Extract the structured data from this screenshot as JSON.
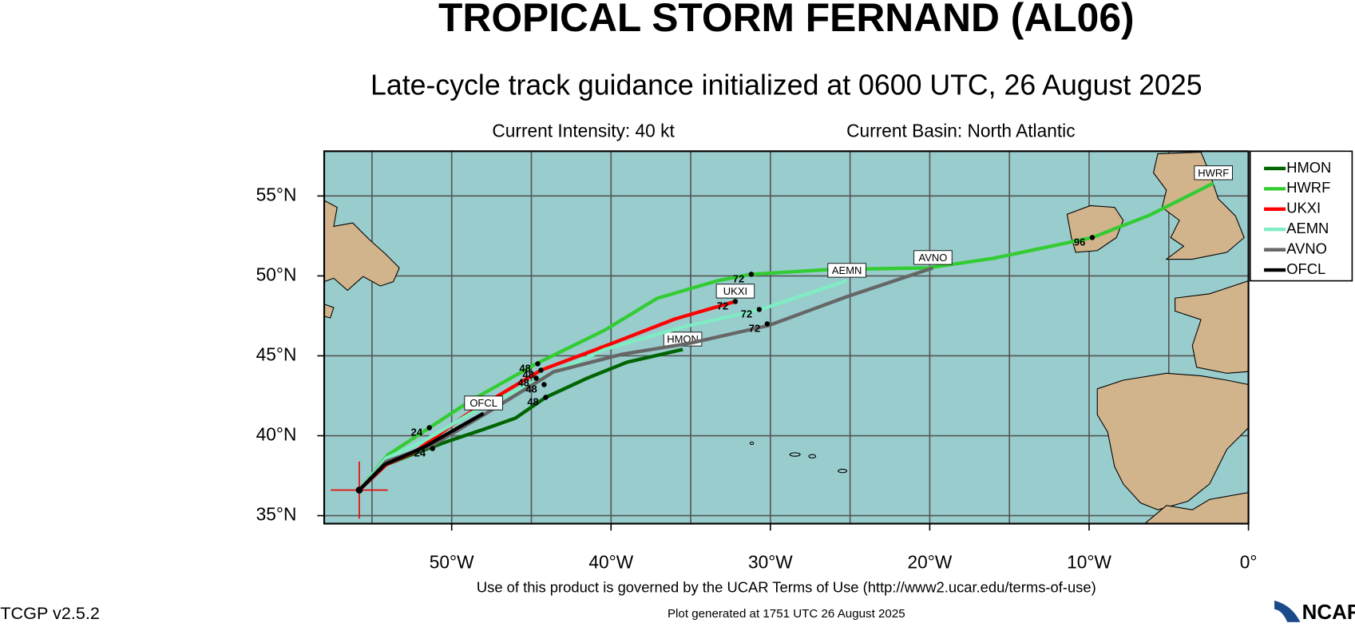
{
  "chart_data": {
    "type": "track-map",
    "title": "TROPICAL STORM FERNAND (AL06)",
    "subtitle": "Late-cycle track guidance initialized at 0600 UTC, 26 August 2025",
    "intensity": "Current Intensity: 40 kt",
    "basin": "Current Basin: North Atlantic",
    "footer_terms": "Use of this product is governed by the UCAR Terms of Use (http://www2.ucar.edu/terms-of-use)",
    "footer_generated": "Plot generated at 1751 UTC   26 August 2025",
    "version": "TCGP v2.5.2",
    "logo": "NCAR",
    "xlim": [
      -58,
      0
    ],
    "ylim": [
      34.5,
      57.8
    ],
    "xticks": [
      {
        "value": -50,
        "label": "50°W"
      },
      {
        "value": -40,
        "label": "40°W"
      },
      {
        "value": -30,
        "label": "30°W"
      },
      {
        "value": -20,
        "label": "20°W"
      },
      {
        "value": -10,
        "label": "10°W"
      },
      {
        "value": 0,
        "label": "0°"
      }
    ],
    "yticks": [
      {
        "value": 35,
        "label": "35°N"
      },
      {
        "value": 40,
        "label": "40°N"
      },
      {
        "value": 45,
        "label": "45°N"
      },
      {
        "value": 50,
        "label": "50°N"
      },
      {
        "value": 55,
        "label": "55°N"
      }
    ],
    "xgrid": [
      -55,
      -50,
      -45,
      -40,
      -35,
      -30,
      -25,
      -20,
      -15,
      -10,
      -5
    ],
    "ygrid": [
      35,
      40,
      45,
      50,
      55
    ],
    "storm_position": {
      "x": -55.8,
      "y": 36.6
    },
    "series": [
      {
        "name": "HMON",
        "color": "#006400",
        "x": [
          -55.8,
          -54.1,
          -52.3,
          -50.1,
          -48.0,
          -46.0,
          -44.1,
          -41.5,
          -39.0,
          -35.5
        ],
        "values": [
          36.6,
          38.2,
          38.9,
          39.7,
          40.4,
          41.1,
          42.4,
          43.6,
          44.6,
          45.4
        ]
      },
      {
        "name": "HWRF",
        "color": "#33cc33",
        "x": [
          -55.8,
          -54.0,
          -51.4,
          -48.8,
          -44.7,
          -40.4,
          -37.1,
          -33.3,
          -31.2,
          -26.3,
          -20.1,
          -16.0,
          -9.8,
          -6.2,
          -2.2
        ],
        "values": [
          36.6,
          38.8,
          40.5,
          42.2,
          44.5,
          46.6,
          48.6,
          49.7,
          50.1,
          50.4,
          50.5,
          51.1,
          52.4,
          53.8,
          55.8
        ]
      },
      {
        "name": "UKXI",
        "color": "#ff0000",
        "x": [
          -55.8,
          -54.1,
          -52.3,
          -49.1,
          -44.4,
          -40.4,
          -36.0,
          -32.2
        ],
        "values": [
          36.6,
          38.2,
          39.0,
          41.3,
          44.1,
          45.6,
          47.3,
          48.4
        ]
      },
      {
        "name": "AEMN",
        "color": "#7fecc4",
        "x": [
          -55.8,
          -54.1,
          -51.7,
          -48.8,
          -44.4,
          -40.4,
          -35.5,
          -30.6,
          -25.2
        ],
        "values": [
          36.6,
          38.6,
          39.7,
          41.4,
          43.6,
          45.4,
          46.8,
          47.9,
          49.7
        ]
      },
      {
        "name": "AVNO",
        "color": "#666666",
        "x": [
          -55.8,
          -54.1,
          -51.2,
          -48.0,
          -43.6,
          -39.3,
          -35.0,
          -30.1,
          -25.2,
          -19.8
        ],
        "values": [
          36.6,
          38.4,
          39.4,
          41.3,
          44.0,
          45.1,
          45.8,
          46.9,
          48.7,
          50.5
        ]
      },
      {
        "name": "OFCL",
        "color": "#000000",
        "x": [
          -55.8,
          -54.2,
          -51.7,
          -49.6,
          -48.0
        ],
        "values": [
          36.6,
          38.2,
          39.3,
          40.5,
          41.4
        ]
      }
    ],
    "hour_marks": [
      {
        "hour": 24,
        "x": -51.4,
        "y": 40.5
      },
      {
        "hour": 24,
        "x": -51.2,
        "y": 39.2
      },
      {
        "hour": 48,
        "x": -44.6,
        "y": 44.5
      },
      {
        "hour": 48,
        "x": -44.4,
        "y": 44.1
      },
      {
        "hour": 48,
        "x": -44.7,
        "y": 43.6
      },
      {
        "hour": 48,
        "x": -44.2,
        "y": 43.2
      },
      {
        "hour": 48,
        "x": -44.1,
        "y": 42.4
      },
      {
        "hour": 72,
        "x": -31.2,
        "y": 50.1
      },
      {
        "hour": 72,
        "x": -32.2,
        "y": 48.4
      },
      {
        "hour": 72,
        "x": -30.7,
        "y": 47.9
      },
      {
        "hour": 72,
        "x": -30.2,
        "y": 47.0
      },
      {
        "hour": 96,
        "x": -9.8,
        "y": 52.4
      }
    ]
  }
}
